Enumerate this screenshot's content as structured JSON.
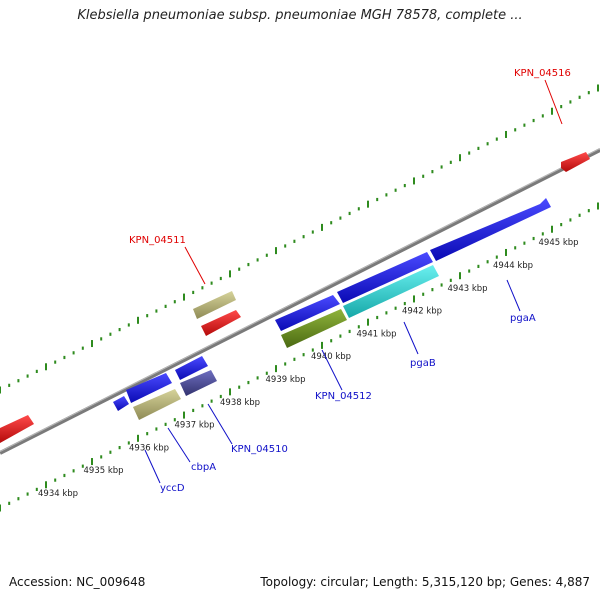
{
  "title": "Klebsiella pneumoniae subsp. pneumoniae MGH 78578, complete ...",
  "footer": {
    "accession": "Accession: NC_009648",
    "meta": "Topology: circular; Length: 5,315,120 bp; Genes: 4,887"
  },
  "colors": {
    "background": "#ffffff",
    "backbone": "#808080",
    "tick": "#2e8b1e",
    "label_red": "#e00000",
    "label_blue": "#1010c8",
    "gene_blue": "#1414e6",
    "gene_red": "#ee1111",
    "gene_khaki": "#b5b179",
    "gene_cyan": "#2ad4d4",
    "gene_olive": "#6b8e23",
    "gene_slate": "#4b4b9a"
  },
  "scale_labels": [
    "4934 kbp",
    "4935 kbp",
    "4936 kbp",
    "4937 kbp",
    "4938 kbp",
    "4939 kbp",
    "4940 kbp",
    "4941 kbp",
    "4942 kbp",
    "4943 kbp",
    "4944 kbp",
    "4945 kbp"
  ],
  "gene_labels": [
    {
      "id": "KPN_04516",
      "text": "KPN_04516",
      "color": "red"
    },
    {
      "id": "KPN_04511",
      "text": "KPN_04511",
      "color": "red"
    },
    {
      "id": "KPN_04512",
      "text": "KPN_04512",
      "color": "blue"
    },
    {
      "id": "KPN_04510",
      "text": "KPN_04510",
      "color": "blue"
    },
    {
      "id": "pgaA",
      "text": "pgaA",
      "color": "blue"
    },
    {
      "id": "pgaB",
      "text": "pgaB",
      "color": "blue"
    },
    {
      "id": "cbpA",
      "text": "cbpA",
      "color": "blue"
    },
    {
      "id": "yccD",
      "text": "yccD",
      "color": "blue"
    }
  ]
}
